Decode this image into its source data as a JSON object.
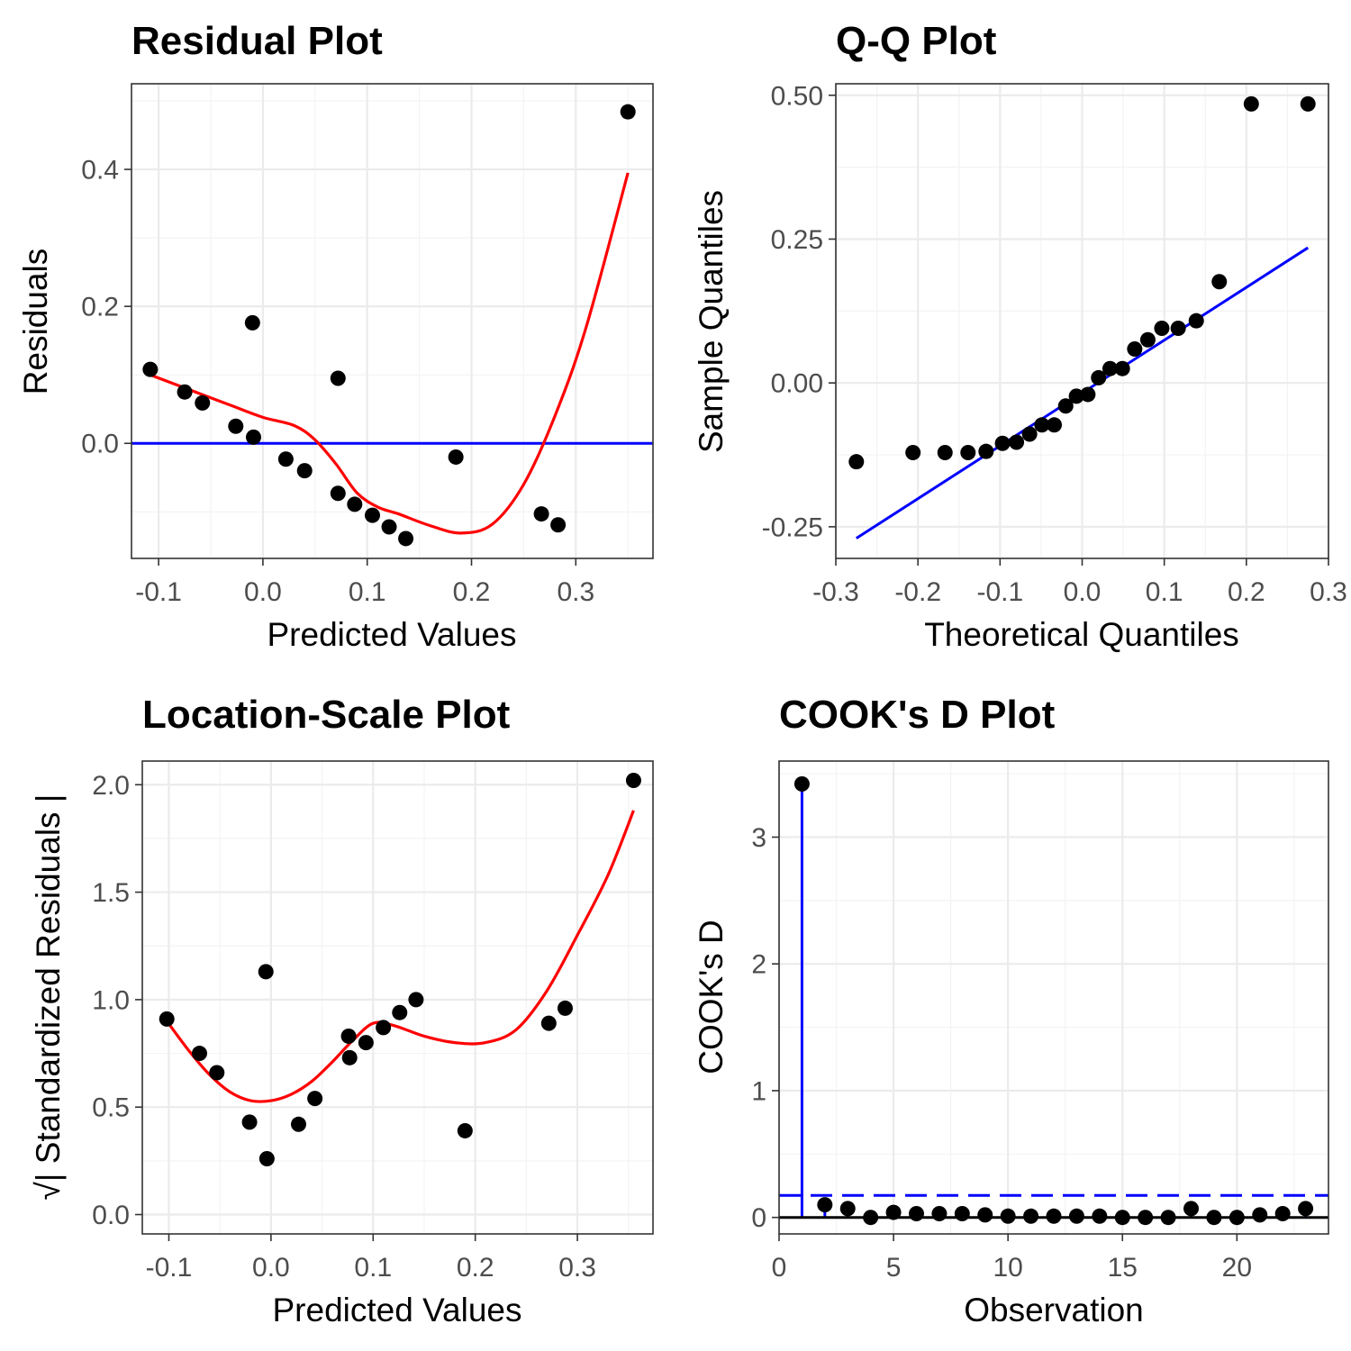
{
  "colors": {
    "point": "#000000",
    "smooth": "#ff0000",
    "reference": "#0000ff",
    "zero_line": "#000000",
    "grid": "#ebebeb",
    "panel_border": "#333333"
  },
  "chart_data": [
    {
      "id": "residual",
      "type": "scatter",
      "title": "Residual Plot",
      "xlabel": "Predicted Values",
      "ylabel": "Residuals",
      "xlim": [
        -0.126,
        0.374
      ],
      "ylim": [
        -0.168,
        0.525
      ],
      "x_ticks": [
        -0.1,
        0.0,
        0.1,
        0.2,
        0.3
      ],
      "x_tick_labels": [
        "-0.1",
        "0.0",
        "0.1",
        "0.2",
        "0.3"
      ],
      "y_ticks": [
        0.0,
        0.2,
        0.4
      ],
      "y_tick_labels": [
        "0.0",
        "0.2",
        "0.4"
      ],
      "grid": true,
      "points": {
        "x": [
          -0.108,
          -0.075,
          -0.058,
          -0.026,
          -0.01,
          -0.009,
          0.022,
          0.04,
          0.072,
          0.072,
          0.088,
          0.105,
          0.121,
          0.137,
          0.185,
          0.267,
          0.283,
          0.35
        ],
        "y": [
          0.108,
          0.075,
          0.059,
          0.025,
          0.176,
          0.009,
          -0.023,
          -0.04,
          0.095,
          -0.073,
          -0.089,
          -0.105,
          -0.122,
          -0.139,
          -0.02,
          -0.103,
          -0.119,
          0.484
        ]
      },
      "smooth_line": {
        "x": [
          -0.108,
          -0.07,
          -0.03,
          0.0,
          0.03,
          0.05,
          0.07,
          0.09,
          0.11,
          0.13,
          0.16,
          0.19,
          0.22,
          0.25,
          0.28,
          0.31,
          0.35
        ],
        "y": [
          0.1,
          0.078,
          0.055,
          0.038,
          0.026,
          0.005,
          -0.03,
          -0.072,
          -0.093,
          -0.103,
          -0.12,
          -0.131,
          -0.118,
          -0.06,
          0.04,
          0.17,
          0.395
        ]
      },
      "reference_line": {
        "type": "horizontal",
        "y": 0.0
      }
    },
    {
      "id": "qq",
      "type": "scatter",
      "title": "Q-Q Plot",
      "xlabel": "Theoretical Quantiles",
      "ylabel": "Sample Quantiles",
      "xlim": [
        -0.3,
        0.3
      ],
      "ylim": [
        -0.305,
        0.52
      ],
      "x_ticks": [
        -0.3,
        -0.2,
        -0.1,
        0.0,
        0.1,
        0.2,
        0.3
      ],
      "x_tick_labels": [
        "-0.3",
        "-0.2",
        "-0.1",
        "0.0",
        "0.1",
        "0.2",
        "0.3"
      ],
      "y_ticks": [
        -0.25,
        0.0,
        0.25,
        0.5
      ],
      "y_tick_labels": [
        "-0.25",
        "0.00",
        "0.25",
        "0.50"
      ],
      "grid": true,
      "points": {
        "x": [
          -0.275,
          -0.206,
          -0.167,
          -0.139,
          -0.117,
          -0.097,
          -0.08,
          -0.064,
          -0.049,
          -0.034,
          -0.02,
          -0.007,
          0.007,
          0.02,
          0.034,
          0.049,
          0.064,
          0.08,
          0.097,
          0.117,
          0.139,
          0.167,
          0.206,
          0.275
        ],
        "y": [
          -0.137,
          -0.121,
          -0.121,
          -0.121,
          -0.119,
          -0.105,
          -0.103,
          -0.089,
          -0.073,
          -0.073,
          -0.04,
          -0.023,
          -0.02,
          0.009,
          0.025,
          0.025,
          0.059,
          0.075,
          0.095,
          0.095,
          0.108,
          0.176,
          0.485,
          0.485
        ]
      },
      "reference_line": {
        "type": "segment",
        "x": [
          -0.275,
          0.275
        ],
        "y": [
          -0.27,
          0.235
        ]
      }
    },
    {
      "id": "location_scale",
      "type": "scatter",
      "title": "Location-Scale Plot",
      "xlabel": "Predicted Values",
      "ylabel": "√| Standardized Residuals |",
      "xlim": [
        -0.126,
        0.374
      ],
      "ylim": [
        -0.09,
        2.11
      ],
      "x_ticks": [
        -0.1,
        0.0,
        0.1,
        0.2,
        0.3
      ],
      "x_tick_labels": [
        "-0.1",
        "0.0",
        "0.1",
        "0.2",
        "0.3"
      ],
      "y_ticks": [
        0.0,
        0.5,
        1.0,
        1.5,
        2.0
      ],
      "y_tick_labels": [
        "0.0",
        "0.5",
        "1.0",
        "1.5",
        "2.0"
      ],
      "grid": true,
      "points": {
        "x": [
          -0.102,
          -0.07,
          -0.053,
          -0.021,
          -0.005,
          -0.004,
          0.027,
          0.043,
          0.076,
          0.077,
          0.093,
          0.11,
          0.126,
          0.142,
          0.19,
          0.272,
          0.288,
          0.355
        ],
        "y": [
          0.91,
          0.75,
          0.66,
          0.43,
          1.13,
          0.26,
          0.42,
          0.54,
          0.83,
          0.73,
          0.8,
          0.87,
          0.94,
          1.0,
          0.39,
          0.89,
          0.96,
          2.02
        ]
      },
      "smooth_line": {
        "x": [
          -0.102,
          -0.08,
          -0.06,
          -0.04,
          -0.02,
          0.0,
          0.02,
          0.04,
          0.06,
          0.08,
          0.1,
          0.12,
          0.15,
          0.18,
          0.21,
          0.24,
          0.27,
          0.3,
          0.33,
          0.355
        ],
        "y": [
          0.9,
          0.76,
          0.65,
          0.57,
          0.53,
          0.53,
          0.56,
          0.62,
          0.71,
          0.81,
          0.89,
          0.88,
          0.83,
          0.8,
          0.8,
          0.86,
          1.04,
          1.3,
          1.58,
          1.88
        ]
      }
    },
    {
      "id": "cooks_d",
      "type": "scatter",
      "title": "COOK's D Plot",
      "xlabel": "Observation",
      "ylabel": "COOK's D",
      "xlim": [
        0,
        24
      ],
      "ylim": [
        -0.13,
        3.6
      ],
      "x_ticks": [
        0,
        5,
        10,
        15,
        20
      ],
      "x_tick_labels": [
        "0",
        "5",
        "10",
        "15",
        "20"
      ],
      "y_ticks": [
        0,
        1,
        2,
        3
      ],
      "y_tick_labels": [
        "0",
        "1",
        "2",
        "3"
      ],
      "grid": true,
      "points": {
        "x": [
          1,
          2,
          3,
          4,
          5,
          6,
          7,
          8,
          9,
          10,
          11,
          12,
          13,
          14,
          15,
          16,
          17,
          18,
          19,
          20,
          21,
          22,
          23
        ],
        "y": [
          3.42,
          0.1,
          0.07,
          0.0,
          0.04,
          0.03,
          0.03,
          0.03,
          0.02,
          0.01,
          0.01,
          0.01,
          0.01,
          0.01,
          0.0,
          0.0,
          0.0,
          0.07,
          0.0,
          0.0,
          0.02,
          0.03,
          0.07
        ]
      },
      "threshold_line": {
        "y": 0.174,
        "style": "dashed"
      },
      "zero_line": {
        "y": 0
      }
    }
  ]
}
